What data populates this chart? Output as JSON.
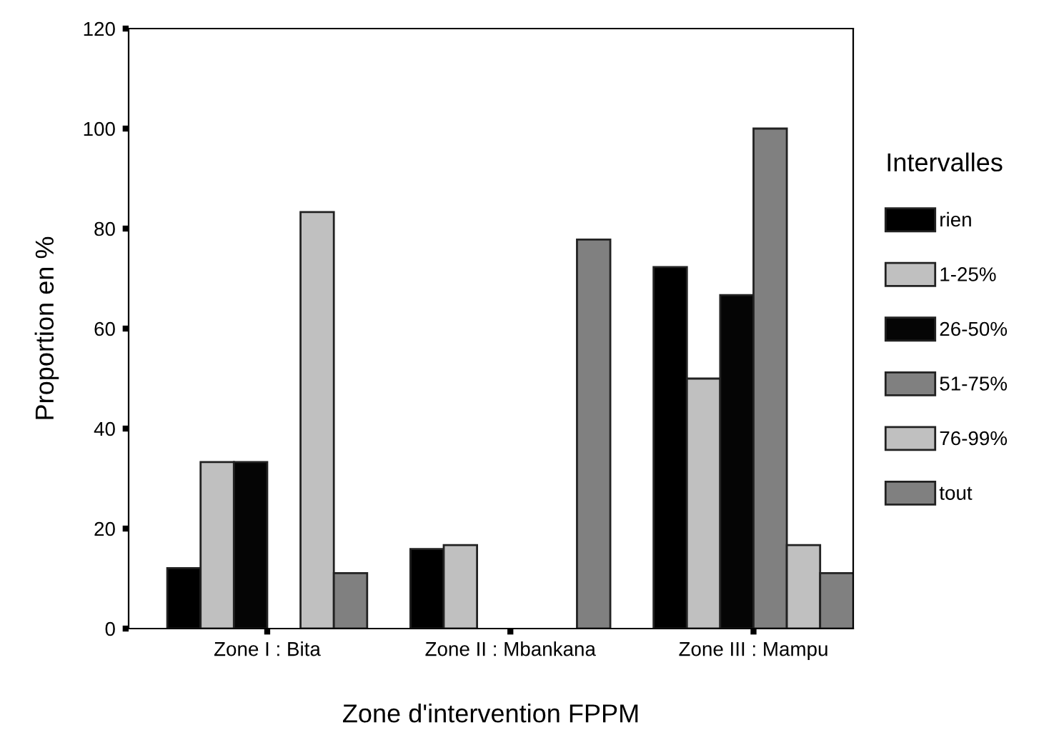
{
  "chart_data": {
    "type": "bar",
    "xlabel": "Zone d'intervention FPPM",
    "ylabel": "Proportion en %",
    "legend_title": "Intervalles",
    "legend": "right",
    "grid": false,
    "categories": [
      "Zone I : Bita",
      "Zone II : Mbankana",
      "Zone III : Mampu"
    ],
    "ylim": [
      0,
      120
    ],
    "yticks": [
      0,
      20,
      40,
      60,
      80,
      100,
      120
    ],
    "series": [
      {
        "name": "rien",
        "color": "#000000",
        "values": [
          12.1,
          15.9,
          72.3
        ]
      },
      {
        "name": "1-25%",
        "color": "#c0c0c0",
        "values": [
          33.3,
          16.7,
          50
        ]
      },
      {
        "name": "26-50%",
        "color": "#050505",
        "values": [
          33.3,
          null,
          66.7
        ]
      },
      {
        "name": "51-75%",
        "color": "#808080",
        "values": [
          null,
          null,
          100
        ]
      },
      {
        "name": "76-99%",
        "color": "#c0c0c0",
        "values": [
          83.3,
          null,
          16.7
        ]
      },
      {
        "name": "tout",
        "color": "#808080",
        "values": [
          11.1,
          77.8,
          11.1
        ]
      }
    ]
  }
}
